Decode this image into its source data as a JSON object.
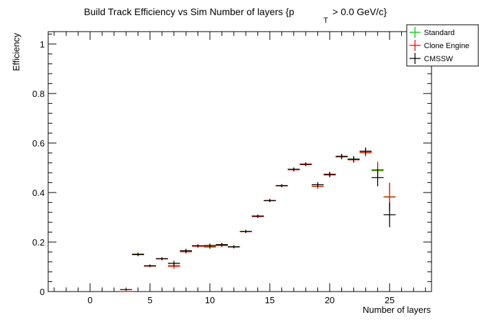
{
  "chart_data": {
    "type": "scatter",
    "title": "Build Track Efficiency vs Sim Number of layers {p",
    "title_subscript": "T",
    "title_suffix": "> 0.0 GeV/c}",
    "xlabel": "Number of layers",
    "ylabel": "Efficiency",
    "xlim": [
      -3.5,
      28.5
    ],
    "ylim": [
      0,
      1.05
    ],
    "x_ticks": [
      0,
      5,
      10,
      15,
      20,
      25
    ],
    "y_ticks": [
      0,
      0.2,
      0.4,
      0.6,
      0.8,
      1
    ],
    "y_tick_labels": [
      "0",
      "0.2",
      "0.4",
      "0.6",
      "0.8",
      "1"
    ],
    "grid": false,
    "legend_position": "top-right",
    "series": [
      {
        "name": "Standard",
        "color": "#00cc00",
        "x": [
          4,
          5,
          6,
          7,
          8,
          9,
          10,
          11,
          12,
          13,
          14,
          15,
          16,
          17,
          18,
          19,
          20,
          21,
          22,
          23,
          24,
          25
        ],
        "y": [
          0.152,
          0.104,
          0.132,
          0.105,
          0.163,
          0.184,
          0.182,
          0.188,
          0.181,
          0.243,
          0.304,
          0.368,
          0.427,
          0.494,
          0.514,
          0.426,
          0.472,
          0.546,
          0.535,
          0.565,
          0.488,
          0.383
        ],
        "err": [
          0.006,
          0.005,
          0.006,
          0.01,
          0.008,
          0.006,
          0.008,
          0.007,
          0.006,
          0.006,
          0.006,
          0.006,
          0.006,
          0.007,
          0.007,
          0.01,
          0.01,
          0.01,
          0.012,
          0.015,
          0.03,
          0.055
        ]
      },
      {
        "name": "Clone Engine",
        "color": "#ff0000",
        "x": [
          3,
          4,
          5,
          6,
          7,
          8,
          9,
          10,
          11,
          12,
          13,
          14,
          15,
          16,
          17,
          18,
          19,
          20,
          21,
          22,
          23,
          24,
          25
        ],
        "y": [
          0.0,
          0.15,
          0.103,
          0.132,
          0.102,
          0.161,
          0.183,
          0.18,
          0.186,
          0.18,
          0.242,
          0.303,
          0.367,
          0.427,
          0.492,
          0.513,
          0.425,
          0.471,
          0.544,
          0.532,
          0.561,
          0.492,
          0.382
        ],
        "err": [
          0.003,
          0.006,
          0.005,
          0.006,
          0.01,
          0.008,
          0.006,
          0.008,
          0.007,
          0.006,
          0.006,
          0.006,
          0.006,
          0.006,
          0.007,
          0.007,
          0.01,
          0.01,
          0.01,
          0.012,
          0.015,
          0.032,
          0.058
        ]
      },
      {
        "name": "CMSSW",
        "color": "#000000",
        "x": [
          3,
          4,
          5,
          6,
          7,
          8,
          9,
          10,
          11,
          12,
          13,
          14,
          15,
          16,
          17,
          18,
          19,
          20,
          21,
          22,
          23,
          24,
          25
        ],
        "y": [
          0.008,
          0.149,
          0.104,
          0.133,
          0.114,
          0.165,
          0.185,
          0.186,
          0.19,
          0.181,
          0.243,
          0.305,
          0.368,
          0.428,
          0.494,
          0.515,
          0.432,
          0.474,
          0.546,
          0.535,
          0.567,
          0.46,
          0.31
        ],
        "err": [
          0.003,
          0.006,
          0.005,
          0.006,
          0.01,
          0.008,
          0.006,
          0.008,
          0.007,
          0.006,
          0.006,
          0.006,
          0.006,
          0.006,
          0.007,
          0.007,
          0.01,
          0.01,
          0.01,
          0.012,
          0.015,
          0.035,
          0.05
        ]
      }
    ]
  }
}
